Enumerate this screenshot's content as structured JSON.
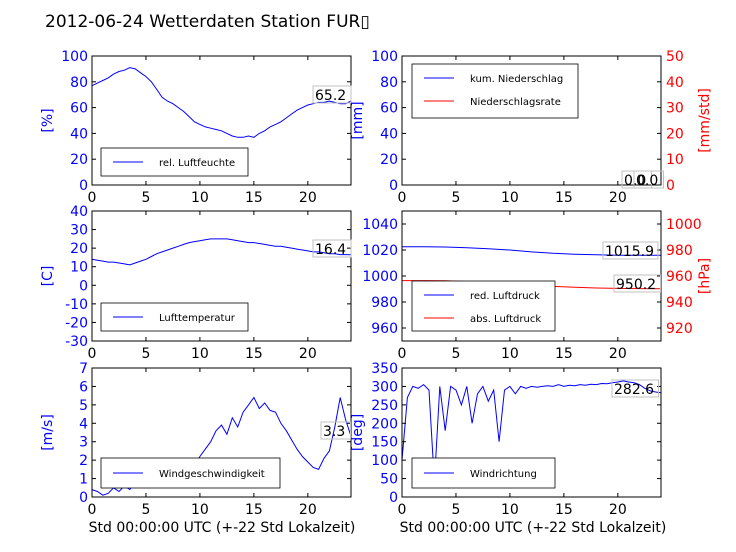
{
  "title": "2012-06-24 Wetterdaten Station FUR▯",
  "colors": {
    "blue": "#0000ff",
    "red": "#ff0000",
    "lightblue": "#8080ff",
    "black": "#000000"
  },
  "xlabel": "Std 00:00:00 UTC (+-22 Std Lokalzeit)",
  "chart_data": [
    {
      "type": "line",
      "panel": "humidity",
      "ylabel": "[%]",
      "xlim": [
        0,
        24
      ],
      "xticks": [
        0,
        5,
        10,
        15,
        20
      ],
      "ylim": [
        0,
        100
      ],
      "yticks": [
        0,
        20,
        40,
        60,
        80,
        100
      ],
      "legend_placement": "lower-left",
      "value_label": "65.2",
      "series": [
        {
          "name": "rel. Luftfeuchte",
          "color": "#0000ff",
          "x": [
            0,
            0.5,
            1,
            1.5,
            2,
            2.5,
            3,
            3.5,
            4,
            4.5,
            5,
            5.5,
            6,
            6.5,
            7,
            7.5,
            8,
            8.5,
            9,
            9.5,
            10,
            10.5,
            11,
            11.5,
            12,
            12.5,
            13,
            13.5,
            14,
            14.5,
            15,
            15.5,
            16,
            16.5,
            17,
            17.5,
            18,
            18.5,
            19,
            19.5,
            20,
            20.5,
            21,
            21.5,
            22,
            22.5,
            23,
            23.5,
            24
          ],
          "y": [
            77,
            79,
            81,
            83,
            86,
            88,
            89,
            91,
            90,
            87,
            84,
            80,
            74,
            68,
            65,
            63,
            60,
            57,
            53,
            49,
            47,
            45,
            44,
            43,
            42,
            40,
            38,
            37,
            37,
            38,
            37,
            40,
            42,
            45,
            47,
            49,
            52,
            55,
            58,
            60,
            62,
            63,
            64,
            64,
            65,
            64,
            63,
            63,
            65
          ]
        }
      ]
    },
    {
      "type": "line",
      "panel": "precipitation",
      "ylabel": "[mm]",
      "ylabel_right": "[mm/std]",
      "xlim": [
        0,
        24
      ],
      "xticks": [
        0,
        5,
        10,
        15,
        20
      ],
      "ylim": [
        0,
        100
      ],
      "yticks": [
        0,
        20,
        40,
        60,
        80,
        100
      ],
      "ylim_right": [
        0,
        50
      ],
      "yticks_right": [
        0,
        10,
        20,
        30,
        40,
        50
      ],
      "legend_placement": "upper-left",
      "value_label_1": "0.0",
      "value_label_2": "0.0",
      "series": [
        {
          "name": "kum. Niederschlag",
          "color": "#0000ff",
          "axis": "left",
          "x": [
            0,
            24
          ],
          "y": [
            0,
            0
          ]
        },
        {
          "name": "Niederschlagsrate",
          "color": "#ff0000",
          "axis": "right",
          "x": [
            0,
            24
          ],
          "y": [
            0,
            0
          ]
        }
      ]
    },
    {
      "type": "line",
      "panel": "temperature",
      "ylabel": "[C]",
      "xlim": [
        0,
        24
      ],
      "xticks": [
        0,
        5,
        10,
        15,
        20
      ],
      "ylim": [
        -30,
        40
      ],
      "yticks": [
        -30,
        -20,
        -10,
        0,
        10,
        20,
        30,
        40
      ],
      "legend_placement": "lower-left",
      "value_label": "16.4",
      "series": [
        {
          "name": "Lufttemperatur",
          "color": "#0000ff",
          "x": [
            0,
            0.5,
            1,
            1.5,
            2,
            2.5,
            3,
            3.5,
            4,
            4.5,
            5,
            5.5,
            6,
            6.5,
            7,
            7.5,
            8,
            8.5,
            9,
            9.5,
            10,
            10.5,
            11,
            11.5,
            12,
            12.5,
            13,
            13.5,
            14,
            14.5,
            15,
            15.5,
            16,
            16.5,
            17,
            17.5,
            18,
            18.5,
            19,
            19.5,
            20,
            20.5,
            21,
            21.5,
            22,
            22.5,
            23,
            23.5,
            24
          ],
          "y": [
            14,
            13.5,
            13,
            12.5,
            12.5,
            12,
            11.5,
            11,
            12,
            13,
            14,
            15.5,
            17,
            18,
            19,
            20,
            21,
            22,
            23,
            23.5,
            24,
            24.5,
            25,
            25,
            25,
            25,
            24.5,
            24,
            23.5,
            23,
            23,
            22.5,
            22,
            21.5,
            21,
            21,
            20.5,
            20,
            19.5,
            19,
            18.5,
            18,
            18,
            17.5,
            17,
            17,
            16.5,
            16.5,
            16.4
          ]
        }
      ]
    },
    {
      "type": "line",
      "panel": "pressure",
      "ylabel_right": "[hPa]",
      "xlim": [
        0,
        24
      ],
      "xticks": [
        0,
        5,
        10,
        15,
        20
      ],
      "ylim": [
        950,
        1050
      ],
      "yticks": [
        960,
        980,
        1000,
        1020,
        1040
      ],
      "ylim_right": [
        910,
        1010
      ],
      "yticks_right": [
        920,
        940,
        960,
        980,
        1000
      ],
      "legend_placement": "lower-left",
      "value_label_1": "1015.9",
      "value_label_2": "950.2",
      "series": [
        {
          "name": "red. Luftdruck",
          "color": "#0000ff",
          "axis": "left",
          "x": [
            0,
            2,
            4,
            6,
            8,
            10,
            12,
            14,
            16,
            18,
            20,
            22,
            24
          ],
          "y": [
            1022.5,
            1022.5,
            1022.3,
            1021.8,
            1021,
            1020,
            1018.5,
            1017.5,
            1016.8,
            1016.3,
            1016,
            1015.9,
            1015.9
          ]
        },
        {
          "name": "abs. Luftdruck",
          "color": "#ff0000",
          "axis": "right",
          "x": [
            0,
            2,
            4,
            6,
            8,
            10,
            12,
            14,
            16,
            18,
            20,
            22,
            24
          ],
          "y": [
            956.5,
            956.5,
            956.3,
            955.8,
            955,
            954,
            953,
            952,
            951.3,
            950.8,
            950.5,
            950.3,
            950.2
          ]
        }
      ]
    },
    {
      "type": "line",
      "panel": "windspeed",
      "ylabel": "[m/s]",
      "xlim": [
        0,
        24
      ],
      "xticks": [
        0,
        5,
        10,
        15,
        20
      ],
      "ylim": [
        0,
        7
      ],
      "yticks": [
        0,
        1,
        2,
        3,
        4,
        5,
        6,
        7
      ],
      "legend_placement": "lower-left",
      "value_label": "3.3",
      "series": [
        {
          "name": "Windgeschwindigkeit",
          "color": "#0000ff",
          "x": [
            0,
            0.5,
            1,
            1.5,
            2,
            2.5,
            3,
            3.5,
            4,
            4.5,
            5,
            5.5,
            6,
            6.5,
            7,
            7.5,
            8,
            8.5,
            9,
            9.5,
            10,
            10.5,
            11,
            11.5,
            12,
            12.5,
            13,
            13.5,
            14,
            14.5,
            15,
            15.5,
            16,
            16.5,
            17,
            17.5,
            18,
            18.5,
            19,
            19.5,
            20,
            20.5,
            21,
            21.5,
            22,
            22.5,
            23,
            23.5,
            24
          ],
          "y": [
            0.4,
            0.3,
            0.1,
            0.2,
            0.5,
            0.3,
            0.6,
            0.4,
            0.8,
            0.6,
            1.0,
            0.9,
            1.2,
            1.1,
            1.4,
            1.3,
            1.6,
            1.5,
            1.9,
            1.7,
            2.2,
            2.6,
            3.0,
            3.6,
            3.9,
            3.4,
            4.3,
            3.8,
            4.6,
            5.0,
            5.4,
            4.8,
            5.1,
            4.7,
            4.6,
            4.0,
            3.6,
            3.1,
            2.6,
            2.2,
            1.9,
            1.6,
            1.5,
            2.1,
            2.5,
            3.8,
            5.4,
            4.2,
            3.3
          ]
        }
      ]
    },
    {
      "type": "line",
      "panel": "winddirection",
      "ylabel": "[deg]",
      "xlim": [
        0,
        24
      ],
      "xticks": [
        0,
        5,
        10,
        15,
        20
      ],
      "ylim": [
        0,
        350
      ],
      "yticks": [
        0,
        50,
        100,
        150,
        200,
        250,
        300,
        350
      ],
      "legend_placement": "lower-left",
      "value_label": "282.6",
      "series": [
        {
          "name": "Windrichtung",
          "color": "#0000ff",
          "x": [
            0,
            0.5,
            1,
            1.5,
            2,
            2.5,
            3,
            3.5,
            4,
            4.5,
            5,
            5.5,
            6,
            6.5,
            7,
            7.5,
            8,
            8.5,
            9,
            9.5,
            10,
            10.5,
            11,
            11.5,
            12,
            12.5,
            13,
            13.5,
            14,
            14.5,
            15,
            15.5,
            16,
            16.5,
            17,
            17.5,
            18,
            18.5,
            19,
            19.5,
            20,
            20.5,
            21,
            21.5,
            22,
            22.5,
            23,
            23.5,
            24
          ],
          "y": [
            100,
            270,
            300,
            295,
            305,
            290,
            40,
            300,
            180,
            300,
            290,
            250,
            300,
            200,
            280,
            300,
            260,
            290,
            150,
            290,
            300,
            280,
            300,
            295,
            300,
            298,
            300,
            302,
            300,
            305,
            300,
            303,
            302,
            305,
            303,
            306,
            305,
            308,
            307,
            310,
            312,
            315,
            312,
            310,
            305,
            295,
            288,
            285,
            282.6
          ]
        }
      ]
    }
  ]
}
